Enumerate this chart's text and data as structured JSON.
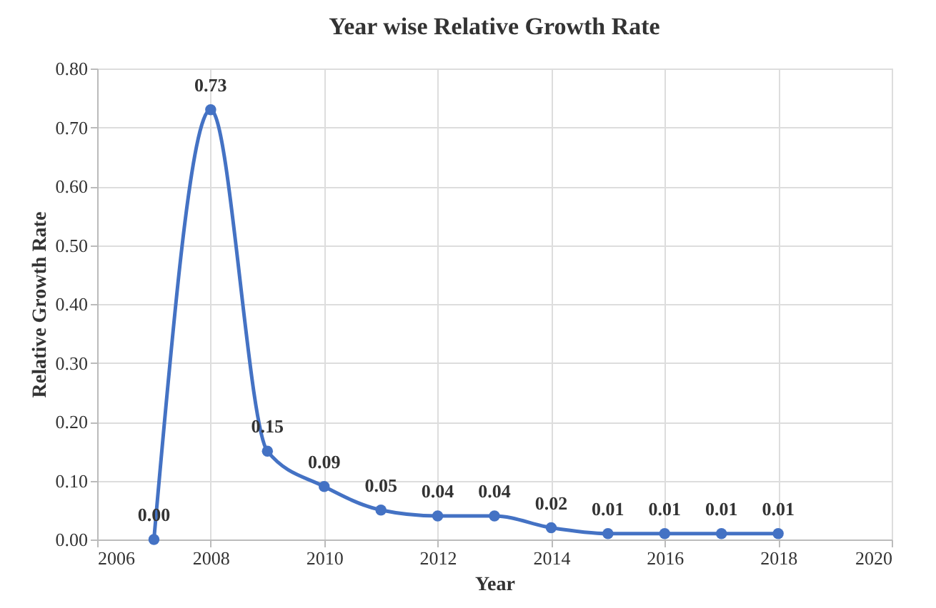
{
  "chart_data": {
    "type": "line",
    "title": "Year wise Relative Growth  Rate",
    "xlabel": "Year",
    "ylabel": "Relative  Growth  Rate",
    "x": [
      2007,
      2008,
      2009,
      2010,
      2011,
      2012,
      2013,
      2014,
      2015,
      2016,
      2017,
      2018
    ],
    "series": [
      {
        "color": "#4472c4",
        "values": [
          0.0,
          0.73,
          0.15,
          0.09,
          0.05,
          0.04,
          0.04,
          0.02,
          0.01,
          0.01,
          0.01,
          0.01
        ],
        "value_labels": [
          "0.00",
          "0.73",
          "0.15",
          "0.09",
          "0.05",
          "0.04",
          "0.04",
          "0.02",
          "0.01",
          "0.01",
          "0.01",
          "0.01"
        ]
      }
    ],
    "xlim": [
      2006,
      2020
    ],
    "xticks": [
      2006,
      2008,
      2010,
      2012,
      2014,
      2016,
      2018,
      2020
    ],
    "ylim": [
      0,
      0.8
    ],
    "yticks": [
      {
        "value": 0,
        "label": "0.00"
      },
      {
        "value": 0.1,
        "label": "0.10"
      },
      {
        "value": 0.2,
        "label": "0.20"
      },
      {
        "value": 0.3,
        "label": "0.30"
      },
      {
        "value": 0.4,
        "label": "0.40"
      },
      {
        "value": 0.5,
        "label": "0.50"
      },
      {
        "value": 0.6,
        "label": "0.60"
      },
      {
        "value": 0.7,
        "label": "0.70"
      },
      {
        "value": 0.8,
        "label": "0.80"
      }
    ],
    "grid": true,
    "marker": "circle",
    "line_style": "solid"
  }
}
